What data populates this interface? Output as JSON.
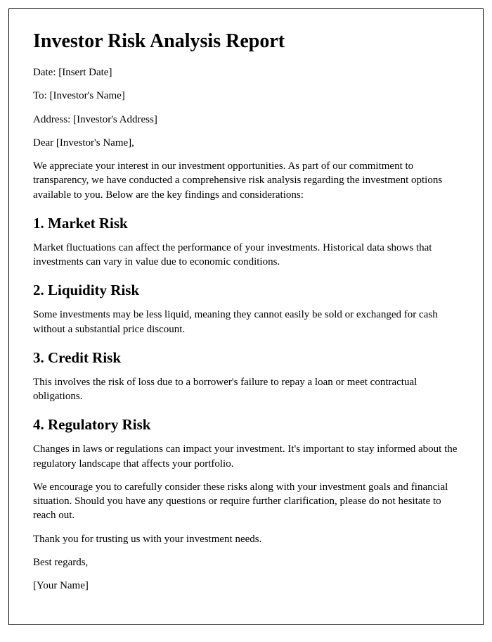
{
  "title": "Investor Risk Analysis Report",
  "meta": {
    "date_label": "Date: [Insert Date]",
    "to_label": "To: [Investor's Name]",
    "address_label": "Address: [Investor's Address]",
    "salutation": "Dear [Investor's Name],"
  },
  "intro": "We appreciate your interest in our investment opportunities. As part of our commitment to transparency, we have conducted a comprehensive risk analysis regarding the investment options available to you. Below are the key findings and considerations:",
  "sections": {
    "s1": {
      "heading": "1. Market Risk",
      "body": "Market fluctuations can affect the performance of your investments. Historical data shows that investments can vary in value due to economic conditions."
    },
    "s2": {
      "heading": "2. Liquidity Risk",
      "body": "Some investments may be less liquid, meaning they cannot easily be sold or exchanged for cash without a substantial price discount."
    },
    "s3": {
      "heading": "3. Credit Risk",
      "body": "This involves the risk of loss due to a borrower's failure to repay a loan or meet contractual obligations."
    },
    "s4": {
      "heading": "4. Regulatory Risk",
      "body": "Changes in laws or regulations can impact your investment. It's important to stay informed about the regulatory landscape that affects your portfolio."
    }
  },
  "closing": {
    "p1": "We encourage you to carefully consider these risks along with your investment goals and financial situation. Should you have any questions or require further clarification, please do not hesitate to reach out.",
    "p2": "Thank you for trusting us with your investment needs.",
    "signoff": "Best regards,",
    "name": "[Your Name]"
  },
  "style": {
    "font_family": "Times New Roman",
    "h1_fontsize": 28,
    "h2_fontsize": 21,
    "body_fontsize": 15,
    "text_color": "#000000",
    "background_color": "#ffffff",
    "border_color": "#000000"
  }
}
